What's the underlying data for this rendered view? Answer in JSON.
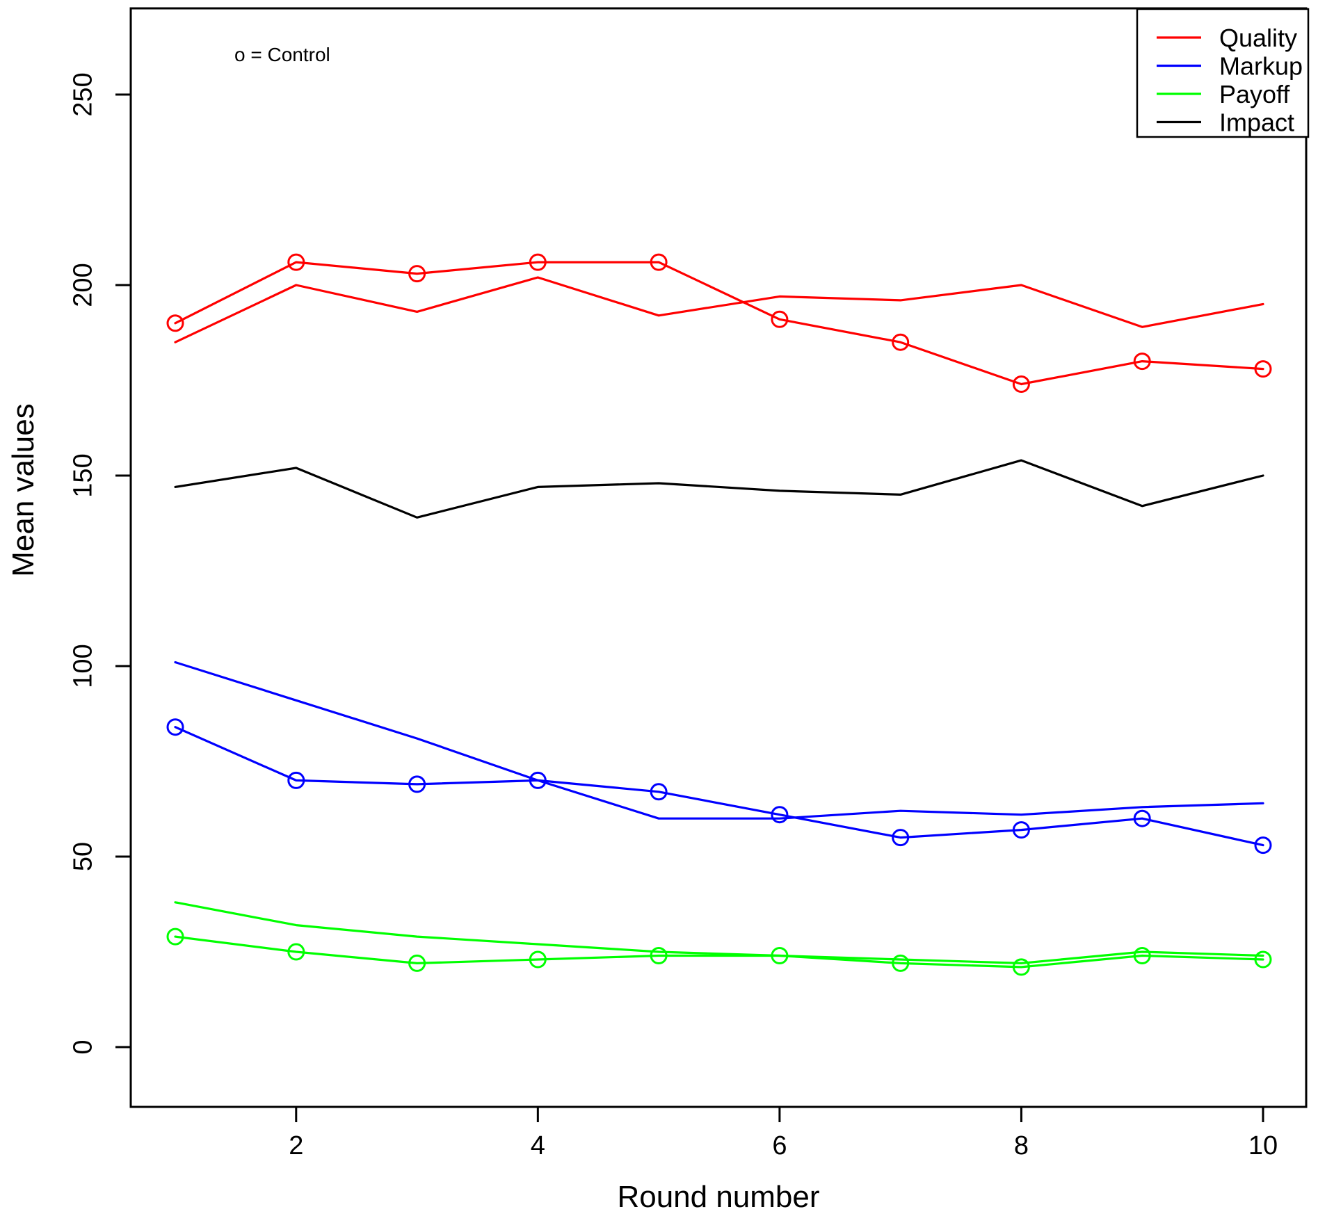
{
  "chart_data": {
    "type": "line",
    "title": "",
    "xlabel": "Round number",
    "ylabel": "Mean values",
    "annotation": "o = Control",
    "x": [
      1,
      2,
      3,
      4,
      5,
      6,
      7,
      8,
      9,
      10
    ],
    "xticks": [
      2,
      4,
      6,
      8,
      10
    ],
    "yticks": [
      0,
      50,
      100,
      150,
      200,
      250
    ],
    "xlim": [
      1,
      10
    ],
    "ylim": [
      0,
      270
    ],
    "grid": false,
    "legend_position": "top-right",
    "marker_legend_note": "circle marker denotes Control series",
    "series": [
      {
        "id": "quality-treatment",
        "group": "Quality",
        "color": "#FF0000",
        "marker": "none",
        "values": [
          185,
          200,
          193,
          202,
          192,
          197,
          196,
          200,
          189,
          195
        ]
      },
      {
        "id": "quality-control",
        "group": "Quality",
        "color": "#FF0000",
        "marker": "circle",
        "values": [
          190,
          206,
          203,
          206,
          206,
          191,
          185,
          174,
          180,
          178
        ]
      },
      {
        "id": "markup-treatment",
        "group": "Markup",
        "color": "#0000FF",
        "marker": "none",
        "values": [
          101,
          91,
          81,
          70,
          60,
          60,
          62,
          61,
          63,
          64
        ]
      },
      {
        "id": "markup-control",
        "group": "Markup",
        "color": "#0000FF",
        "marker": "circle",
        "values": [
          84,
          70,
          69,
          70,
          67,
          61,
          55,
          57,
          60,
          53
        ]
      },
      {
        "id": "payoff-treatment",
        "group": "Payoff",
        "color": "#00FF00",
        "marker": "none",
        "values": [
          38,
          32,
          29,
          27,
          25,
          24,
          23,
          22,
          25,
          24
        ]
      },
      {
        "id": "payoff-control",
        "group": "Payoff",
        "color": "#00FF00",
        "marker": "circle",
        "values": [
          29,
          25,
          22,
          23,
          24,
          24,
          22,
          21,
          24,
          23
        ]
      },
      {
        "id": "impact",
        "group": "Impact",
        "color": "#000000",
        "marker": "none",
        "values": [
          147,
          152,
          139,
          147,
          148,
          146,
          145,
          154,
          142,
          150
        ]
      }
    ],
    "legend": [
      {
        "label": "Quality",
        "color": "#FF0000"
      },
      {
        "label": "Markup",
        "color": "#0000FF"
      },
      {
        "label": "Payoff",
        "color": "#00FF00"
      },
      {
        "label": "Impact",
        "color": "#000000"
      }
    ]
  },
  "colors": {
    "background": "#FFFFFF",
    "axis": "#000000",
    "text": "#000000"
  }
}
